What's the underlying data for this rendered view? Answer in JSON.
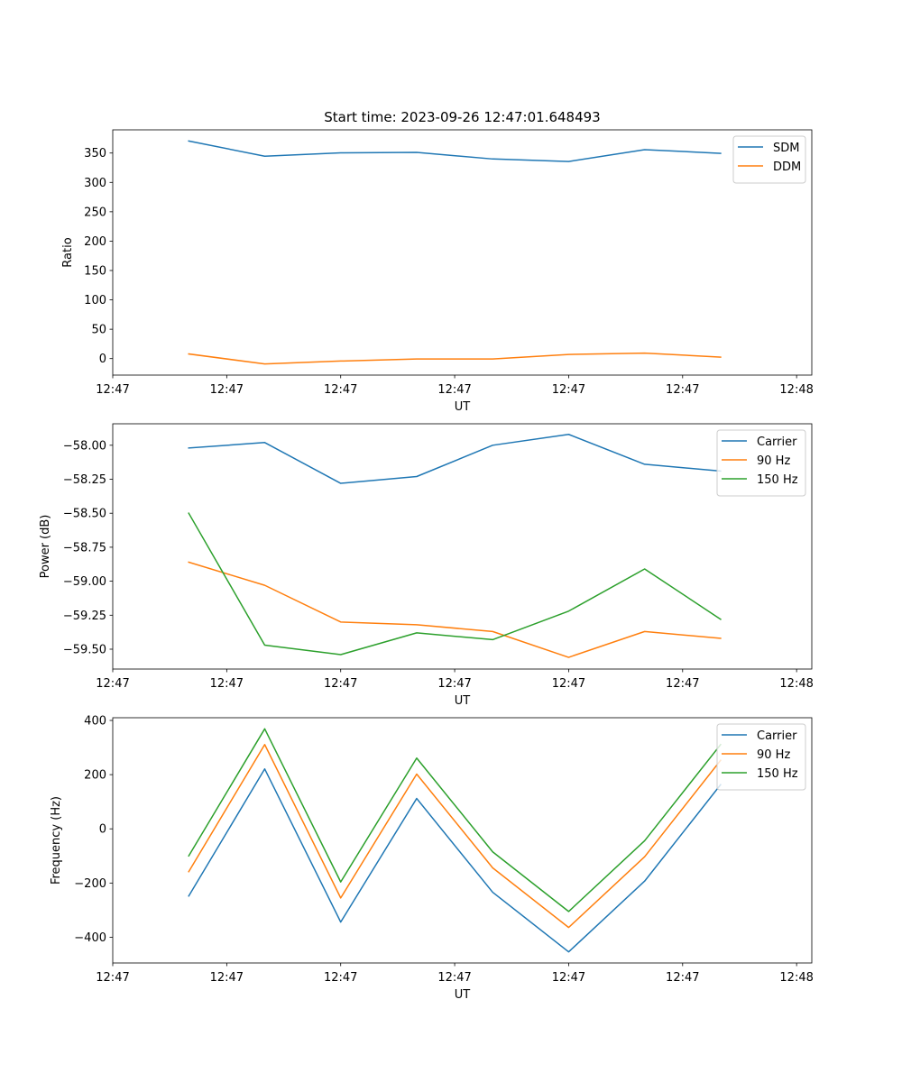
{
  "figure_title": "Start time: 2023-09-26 12:47:01.648493",
  "colors": {
    "blue": "#1f77b4",
    "orange": "#ff7f0e",
    "green": "#2ca02c"
  },
  "chart_data": [
    {
      "type": "line",
      "title": "Start time: 2023-09-26 12:47:01.648493",
      "xlabel": "UT",
      "ylabel": "Ratio",
      "x": [
        1,
        2,
        3,
        4,
        5,
        6,
        7,
        8
      ],
      "xlim": [
        0,
        9.2
      ],
      "xticks": [
        {
          "v": 0.0,
          "label": "12:47"
        },
        {
          "v": 1.5,
          "label": "12:47"
        },
        {
          "v": 3.0,
          "label": "12:47"
        },
        {
          "v": 4.5,
          "label": "12:47"
        },
        {
          "v": 6.0,
          "label": "12:47"
        },
        {
          "v": 7.5,
          "label": "12:47"
        },
        {
          "v": 9.0,
          "label": "12:48"
        }
      ],
      "ylim": [
        -28.1,
        389.5
      ],
      "yticks": [
        {
          "v": 0,
          "label": "0"
        },
        {
          "v": 50,
          "label": "50"
        },
        {
          "v": 100,
          "label": "100"
        },
        {
          "v": 150,
          "label": "150"
        },
        {
          "v": 200,
          "label": "200"
        },
        {
          "v": 250,
          "label": "250"
        },
        {
          "v": 300,
          "label": "300"
        },
        {
          "v": 350,
          "label": "350"
        }
      ],
      "legend_position": "top-right",
      "series": [
        {
          "name": "SDM",
          "color": "#1f77b4",
          "values": [
            370.5,
            344.6,
            350.4,
            351.1,
            339.9,
            335.6,
            355.8,
            349.5
          ]
        },
        {
          "name": "DDM",
          "color": "#ff7f0e",
          "values": [
            7.9,
            -9.1,
            -4.2,
            -0.7,
            -0.7,
            7.1,
            9.4,
            2.4
          ]
        }
      ]
    },
    {
      "type": "line",
      "title": "",
      "xlabel": "UT",
      "ylabel": "Power (dB)",
      "x": [
        1,
        2,
        3,
        4,
        5,
        6,
        7,
        8
      ],
      "xlim": [
        0,
        9.2
      ],
      "xticks": [
        {
          "v": 0.0,
          "label": "12:47"
        },
        {
          "v": 1.5,
          "label": "12:47"
        },
        {
          "v": 3.0,
          "label": "12:47"
        },
        {
          "v": 4.5,
          "label": "12:47"
        },
        {
          "v": 6.0,
          "label": "12:47"
        },
        {
          "v": 7.5,
          "label": "12:47"
        },
        {
          "v": 9.0,
          "label": "12:48"
        }
      ],
      "ylim": [
        -59.646,
        -57.842
      ],
      "yticks": [
        {
          "v": -59.5,
          "label": "−59.50"
        },
        {
          "v": -59.25,
          "label": "−59.25"
        },
        {
          "v": -59.0,
          "label": "−59.00"
        },
        {
          "v": -58.75,
          "label": "−58.75"
        },
        {
          "v": -58.5,
          "label": "−58.50"
        },
        {
          "v": -58.25,
          "label": "−58.25"
        },
        {
          "v": -58.0,
          "label": "−58.00"
        }
      ],
      "legend_position": "top-right",
      "series": [
        {
          "name": "Carrier",
          "color": "#1f77b4",
          "values": [
            -58.02,
            -57.98,
            -58.28,
            -58.23,
            -58.0,
            -57.92,
            -58.14,
            -58.19
          ]
        },
        {
          "name": "90 Hz",
          "color": "#ff7f0e",
          "values": [
            -58.86,
            -59.03,
            -59.3,
            -59.32,
            -59.37,
            -59.56,
            -59.37,
            -59.42
          ]
        },
        {
          "name": "150 Hz",
          "color": "#2ca02c",
          "values": [
            -58.5,
            -59.47,
            -59.54,
            -59.38,
            -59.43,
            -59.22,
            -58.91,
            -59.28
          ]
        }
      ]
    },
    {
      "type": "line",
      "title": "",
      "xlabel": "UT",
      "ylabel": "Frequency (Hz)",
      "x": [
        1,
        2,
        3,
        4,
        5,
        6,
        7,
        8
      ],
      "xlim": [
        0,
        9.2
      ],
      "xticks": [
        {
          "v": 0.0,
          "label": "12:47"
        },
        {
          "v": 1.5,
          "label": "12:47"
        },
        {
          "v": 3.0,
          "label": "12:47"
        },
        {
          "v": 4.5,
          "label": "12:47"
        },
        {
          "v": 6.0,
          "label": "12:47"
        },
        {
          "v": 7.5,
          "label": "12:47"
        },
        {
          "v": 9.0,
          "label": "12:48"
        }
      ],
      "ylim": [
        -495,
        410
      ],
      "yticks": [
        {
          "v": -400,
          "label": "−400"
        },
        {
          "v": -200,
          "label": "−200"
        },
        {
          "v": 0,
          "label": "0"
        },
        {
          "v": 200,
          "label": "200"
        },
        {
          "v": 400,
          "label": "400"
        }
      ],
      "legend_position": "top-right",
      "series": [
        {
          "name": "Carrier",
          "color": "#1f77b4",
          "values": [
            -248,
            221,
            -344,
            112,
            -234,
            -454,
            -193,
            163
          ]
        },
        {
          "name": "90 Hz",
          "color": "#ff7f0e",
          "values": [
            -158,
            311,
            -255,
            202,
            -144,
            -364,
            -103,
            253
          ]
        },
        {
          "name": "150 Hz",
          "color": "#2ca02c",
          "values": [
            -100,
            369,
            -196,
            261,
            -85,
            -305,
            -44,
            311
          ]
        }
      ]
    }
  ]
}
